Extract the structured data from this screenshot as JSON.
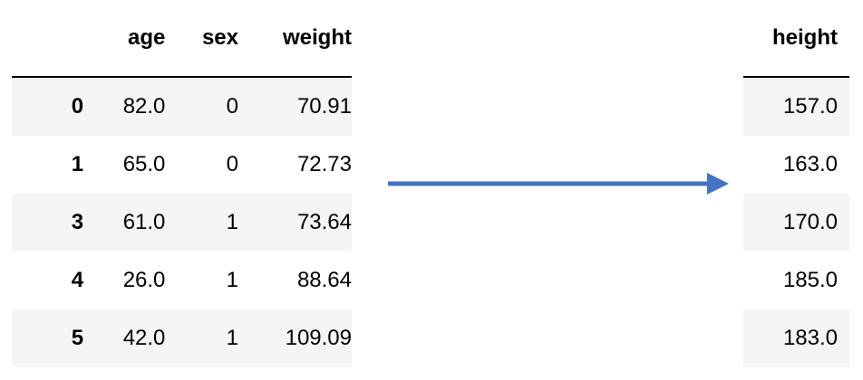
{
  "left_table": {
    "columns": [
      "",
      "age",
      "sex",
      "weight"
    ],
    "rows": [
      [
        "0",
        "82.0",
        "0",
        "70.91"
      ],
      [
        "1",
        "65.0",
        "0",
        "72.73"
      ],
      [
        "3",
        "61.0",
        "1",
        "73.64"
      ],
      [
        "4",
        "26.0",
        "1",
        "88.64"
      ],
      [
        "5",
        "42.0",
        "1",
        "109.09"
      ]
    ]
  },
  "right_table": {
    "columns": [
      "height"
    ],
    "rows": [
      [
        "157.0"
      ],
      [
        "163.0"
      ],
      [
        "170.0"
      ],
      [
        "185.0"
      ],
      [
        "183.0"
      ]
    ]
  },
  "colors": {
    "arrow": "#4472c4",
    "row_shade": "#f5f5f5",
    "rule": "#000000"
  }
}
